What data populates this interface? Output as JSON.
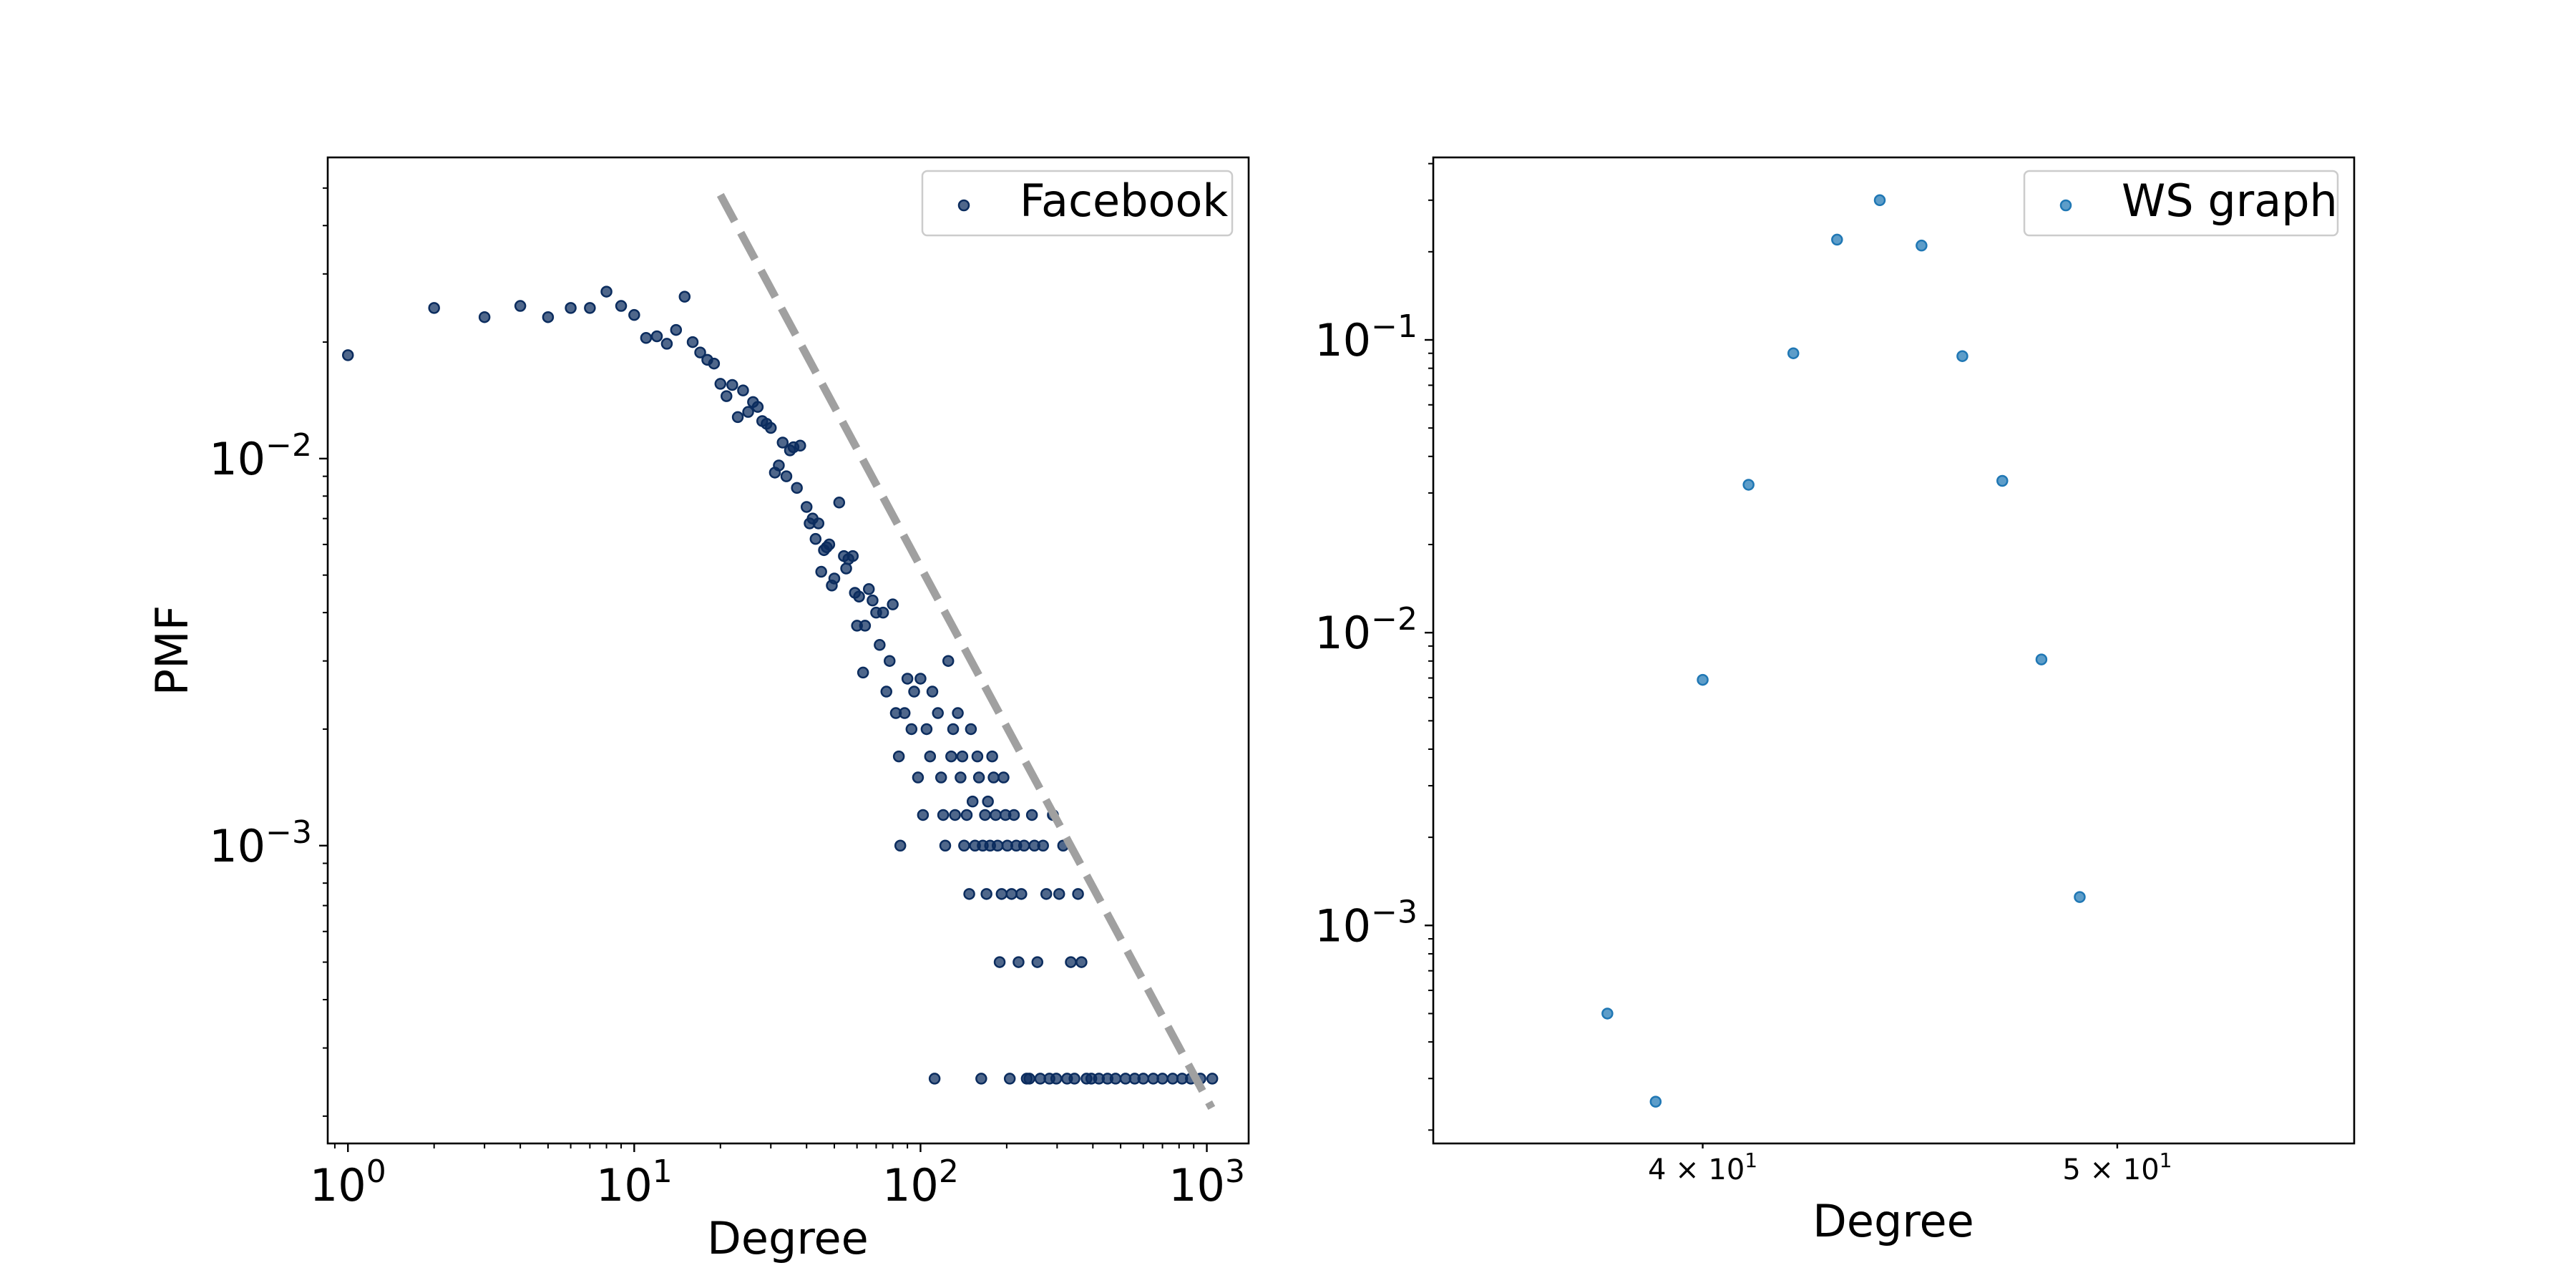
{
  "chart_data": [
    {
      "type": "scatter",
      "xscale": "log",
      "yscale": "log",
      "xlabel": "Degree",
      "ylabel": "PMF",
      "xlim": [
        0.85,
        1400
      ],
      "ylim": [
        0.00017,
        0.06
      ],
      "xticks": [
        {
          "value": 1,
          "base": "10",
          "exp": "0"
        },
        {
          "value": 10,
          "base": "10",
          "exp": "1"
        },
        {
          "value": 100,
          "base": "10",
          "exp": "2"
        },
        {
          "value": 1000,
          "base": "10",
          "exp": "3"
        }
      ],
      "yticks": [
        {
          "value": 0.01,
          "base": "10",
          "exp": "−2"
        },
        {
          "value": 0.001,
          "base": "10",
          "exp": "−3"
        }
      ],
      "legend": {
        "position": "top-right",
        "entries": [
          "Facebook"
        ]
      },
      "grid": false,
      "series": [
        {
          "name": "Facebook",
          "color": "#0b2c5e",
          "points": [
            [
              1,
              0.0185
            ],
            [
              2,
              0.0245
            ],
            [
              3,
              0.0232
            ],
            [
              4,
              0.0248
            ],
            [
              5,
              0.0232
            ],
            [
              6,
              0.0245
            ],
            [
              7,
              0.0245
            ],
            [
              8,
              0.027
            ],
            [
              9,
              0.0248
            ],
            [
              10,
              0.0235
            ],
            [
              11,
              0.0205
            ],
            [
              12,
              0.0207
            ],
            [
              13,
              0.0198
            ],
            [
              14,
              0.0215
            ],
            [
              15,
              0.0262
            ],
            [
              16,
              0.02
            ],
            [
              17,
              0.0188
            ],
            [
              18,
              0.018
            ],
            [
              19,
              0.0176
            ],
            [
              20,
              0.0156
            ],
            [
              21,
              0.0145
            ],
            [
              22,
              0.0155
            ],
            [
              23,
              0.0128
            ],
            [
              24,
              0.015
            ],
            [
              25,
              0.0132
            ],
            [
              26,
              0.014
            ],
            [
              27,
              0.0136
            ],
            [
              28,
              0.0125
            ],
            [
              29,
              0.0123
            ],
            [
              30,
              0.012
            ],
            [
              31,
              0.0092
            ],
            [
              32,
              0.0096
            ],
            [
              33,
              0.011
            ],
            [
              34,
              0.009
            ],
            [
              35,
              0.0105
            ],
            [
              36,
              0.0107
            ],
            [
              37,
              0.0084
            ],
            [
              38,
              0.0108
            ],
            [
              40,
              0.0075
            ],
            [
              41,
              0.0068
            ],
            [
              42,
              0.007
            ],
            [
              43,
              0.0062
            ],
            [
              44,
              0.0068
            ],
            [
              45,
              0.0051
            ],
            [
              46,
              0.0058
            ],
            [
              47,
              0.0059
            ],
            [
              48,
              0.006
            ],
            [
              49,
              0.0047
            ],
            [
              50,
              0.0049
            ],
            [
              52,
              0.0077
            ],
            [
              54,
              0.0056
            ],
            [
              55,
              0.0052
            ],
            [
              56,
              0.0055
            ],
            [
              58,
              0.0056
            ],
            [
              59,
              0.0045
            ],
            [
              60,
              0.0037
            ],
            [
              61,
              0.0044
            ],
            [
              63,
              0.0028
            ],
            [
              64,
              0.0037
            ],
            [
              66,
              0.0046
            ],
            [
              68,
              0.0043
            ],
            [
              70,
              0.004
            ],
            [
              72,
              0.0033
            ],
            [
              74,
              0.004
            ],
            [
              76,
              0.0025
            ],
            [
              78,
              0.003
            ],
            [
              80,
              0.0042
            ],
            [
              82,
              0.0022
            ],
            [
              84,
              0.0017
            ],
            [
              85,
              0.001
            ],
            [
              88,
              0.0022
            ],
            [
              90,
              0.0027
            ],
            [
              93,
              0.002
            ],
            [
              95,
              0.0025
            ],
            [
              98,
              0.0015
            ],
            [
              100,
              0.0027
            ],
            [
              102,
              0.0012
            ],
            [
              105,
              0.002
            ],
            [
              108,
              0.0017
            ],
            [
              110,
              0.0025
            ],
            [
              112,
              0.00025
            ],
            [
              115,
              0.0022
            ],
            [
              118,
              0.0015
            ],
            [
              120,
              0.0012
            ],
            [
              122,
              0.001
            ],
            [
              125,
              0.003
            ],
            [
              128,
              0.0017
            ],
            [
              130,
              0.002
            ],
            [
              132,
              0.0012
            ],
            [
              135,
              0.0022
            ],
            [
              138,
              0.0015
            ],
            [
              140,
              0.0017
            ],
            [
              142,
              0.001
            ],
            [
              145,
              0.0012
            ],
            [
              148,
              0.00075
            ],
            [
              150,
              0.002
            ],
            [
              152,
              0.0013
            ],
            [
              155,
              0.001
            ],
            [
              158,
              0.0017
            ],
            [
              160,
              0.0015
            ],
            [
              163,
              0.00025
            ],
            [
              165,
              0.001
            ],
            [
              168,
              0.0012
            ],
            [
              170,
              0.00075
            ],
            [
              172,
              0.0013
            ],
            [
              175,
              0.001
            ],
            [
              178,
              0.0017
            ],
            [
              180,
              0.0015
            ],
            [
              183,
              0.0012
            ],
            [
              186,
              0.001
            ],
            [
              189,
              0.0005
            ],
            [
              192,
              0.00075
            ],
            [
              195,
              0.0015
            ],
            [
              198,
              0.0012
            ],
            [
              201,
              0.001
            ],
            [
              205,
              0.00025
            ],
            [
              208,
              0.00075
            ],
            [
              212,
              0.0012
            ],
            [
              216,
              0.001
            ],
            [
              220,
              0.0005
            ],
            [
              225,
              0.00075
            ],
            [
              230,
              0.001
            ],
            [
              235,
              0.00025
            ],
            [
              240,
              0.00025
            ],
            [
              245,
              0.0012
            ],
            [
              250,
              0.001
            ],
            [
              256,
              0.0005
            ],
            [
              262,
              0.00025
            ],
            [
              268,
              0.001
            ],
            [
              275,
              0.00075
            ],
            [
              282,
              0.00025
            ],
            [
              290,
              0.0012
            ],
            [
              298,
              0.00025
            ],
            [
              305,
              0.00075
            ],
            [
              315,
              0.001
            ],
            [
              325,
              0.00025
            ],
            [
              335,
              0.0005
            ],
            [
              345,
              0.00025
            ],
            [
              355,
              0.00075
            ],
            [
              365,
              0.0005
            ],
            [
              380,
              0.00025
            ],
            [
              395,
              0.00025
            ],
            [
              420,
              0.00025
            ],
            [
              450,
              0.00025
            ],
            [
              480,
              0.00025
            ],
            [
              520,
              0.00025
            ],
            [
              560,
              0.00025
            ],
            [
              600,
              0.00025
            ],
            [
              650,
              0.00025
            ],
            [
              700,
              0.00025
            ],
            [
              760,
              0.00025
            ],
            [
              820,
              0.00025
            ],
            [
              880,
              0.00025
            ],
            [
              950,
              0.00025
            ],
            [
              1045,
              0.00025
            ]
          ]
        },
        {
          "name": "reference line",
          "style": "dashed",
          "color": "#a0a0a0",
          "points": [
            [
              20,
              0.048
            ],
            [
              1040,
              0.00021
            ]
          ]
        }
      ]
    },
    {
      "type": "scatter",
      "xscale": "log",
      "yscale": "log",
      "xlabel": "Degree",
      "ylabel": "",
      "xlim": [
        34.6,
        56.8
      ],
      "ylim": [
        0.00018,
        0.42
      ],
      "xticks": [
        {
          "value": 40,
          "base": "4 × 10",
          "exp": "1"
        },
        {
          "value": 50,
          "base": "5 × 10",
          "exp": "1"
        }
      ],
      "yticks": [
        {
          "value": 0.1,
          "base": "10",
          "exp": "−1"
        },
        {
          "value": 0.01,
          "base": "10",
          "exp": "−2"
        },
        {
          "value": 0.001,
          "base": "10",
          "exp": "−3"
        }
      ],
      "legend": {
        "position": "top-right",
        "entries": [
          "WS graph"
        ]
      },
      "grid": false,
      "series": [
        {
          "name": "WS graph",
          "color": "#1f77b4",
          "points": [
            [
              38,
              0.0005
            ],
            [
              39,
              0.00025
            ],
            [
              40,
              0.0069
            ],
            [
              41,
              0.032
            ],
            [
              42,
              0.09
            ],
            [
              43,
              0.22
            ],
            [
              44,
              0.3
            ],
            [
              45,
              0.21
            ],
            [
              46,
              0.088
            ],
            [
              47,
              0.033
            ],
            [
              48,
              0.0081
            ],
            [
              49,
              0.00125
            ]
          ]
        }
      ]
    }
  ]
}
